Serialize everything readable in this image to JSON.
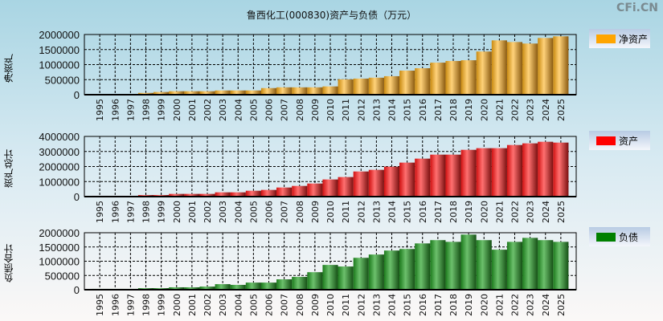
{
  "title": "鲁西化工(000830)资产与负债（万元）",
  "watermark": "CFi.CN",
  "chart_data": [
    {
      "type": "bar",
      "title": "鲁西化工(000830)资产与负债（万元）",
      "ylabel": "净资产",
      "legend": "净资产",
      "color": "#ffa500",
      "ylim": [
        0,
        2000000
      ],
      "yticks": [
        0,
        500000,
        1000000,
        1500000,
        2000000
      ],
      "categories": [
        "1995",
        "1996",
        "1997",
        "1998",
        "1999",
        "2000",
        "2001",
        "2002",
        "2003",
        "2004",
        "2005",
        "2006",
        "2007",
        "2008",
        "2009",
        "2010",
        "2011",
        "2012",
        "2013",
        "2014",
        "2015",
        "2016",
        "2017",
        "2018",
        "2019",
        "2020",
        "2021",
        "2022",
        "2023",
        "2024",
        "2025"
      ],
      "values": [
        25000,
        25000,
        25000,
        60000,
        90000,
        115000,
        115000,
        115000,
        140000,
        140000,
        140000,
        220000,
        245000,
        245000,
        245000,
        275000,
        510000,
        535000,
        565000,
        615000,
        800000,
        880000,
        1065000,
        1120000,
        1145000,
        1435000,
        1805000,
        1750000,
        1700000,
        1885000,
        1940000
      ]
    },
    {
      "type": "bar",
      "ylabel": "资产总计",
      "legend": "资产",
      "color": "#ff0000",
      "ylim": [
        0,
        4000000
      ],
      "yticks": [
        0,
        1000000,
        2000000,
        3000000,
        4000000
      ],
      "categories": [
        "1995",
        "1996",
        "1997",
        "1998",
        "1999",
        "2000",
        "2001",
        "2002",
        "2003",
        "2004",
        "2005",
        "2006",
        "2007",
        "2008",
        "2009",
        "2010",
        "2011",
        "2012",
        "2013",
        "2014",
        "2015",
        "2016",
        "2017",
        "2018",
        "2019",
        "2020",
        "2021",
        "2022",
        "2023",
        "2024",
        "2025"
      ],
      "values": [
        55000,
        55000,
        55000,
        105000,
        105000,
        180000,
        180000,
        180000,
        285000,
        285000,
        390000,
        445000,
        605000,
        710000,
        870000,
        1140000,
        1300000,
        1670000,
        1780000,
        1990000,
        2260000,
        2525000,
        2790000,
        2790000,
        3110000,
        3220000,
        3220000,
        3430000,
        3540000,
        3645000,
        3590000
      ]
    },
    {
      "type": "bar",
      "ylabel": "负债合计",
      "legend": "负债",
      "color": "#008000",
      "ylim": [
        0,
        2000000
      ],
      "yticks": [
        0,
        500000,
        1000000,
        1500000,
        2000000
      ],
      "categories": [
        "1995",
        "1996",
        "1997",
        "1998",
        "1999",
        "2000",
        "2001",
        "2002",
        "2003",
        "2004",
        "2005",
        "2006",
        "2007",
        "2008",
        "2009",
        "2010",
        "2011",
        "2012",
        "2013",
        "2014",
        "2015",
        "2016",
        "2017",
        "2018",
        "2019",
        "2020",
        "2021",
        "2022",
        "2023",
        "2024",
        "2025"
      ],
      "values": [
        30000,
        30000,
        30000,
        55000,
        55000,
        85000,
        85000,
        110000,
        195000,
        170000,
        250000,
        250000,
        365000,
        450000,
        615000,
        870000,
        815000,
        1120000,
        1235000,
        1375000,
        1430000,
        1625000,
        1740000,
        1680000,
        1935000,
        1740000,
        1405000,
        1680000,
        1820000,
        1740000,
        1680000
      ]
    }
  ]
}
